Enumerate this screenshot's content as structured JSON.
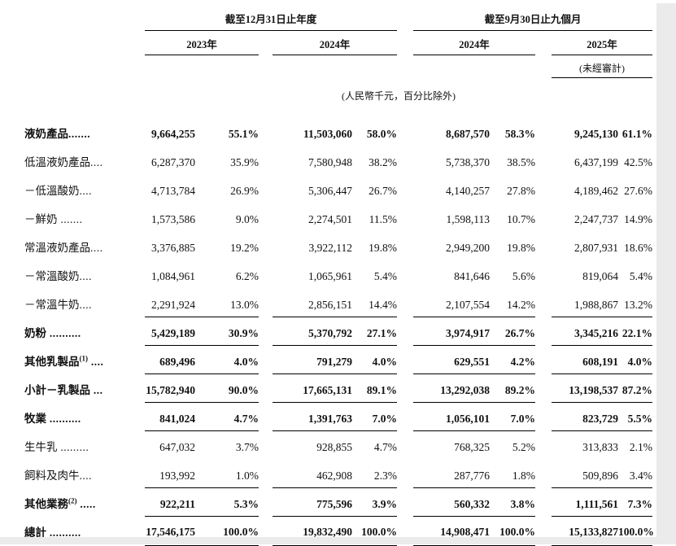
{
  "page": {
    "background": "#ffffff",
    "edge_color": "#ebebeb",
    "rule_color": "#000000"
  },
  "header": {
    "annual_period": "截至12月31日止年度",
    "interim_period": "截至9月30日止九個月",
    "years": {
      "annual_2023": "2023年",
      "annual_2024": "2024年",
      "interim_2024": "2024年",
      "interim_2025": "2025年"
    },
    "unaudited_note": "(未經審計)",
    "units_note": "(人民幣千元，百分比除外)"
  },
  "table": {
    "rows": [
      {
        "label": "液奶產品",
        "sup": "",
        "dots": ".......",
        "bold": true,
        "rule": "none",
        "values": [
          "9,664,255",
          "55.1%",
          "11,503,060",
          "58.0%",
          "8,687,570",
          "58.3%",
          "9,245,130",
          "61.1%"
        ]
      },
      {
        "label": "低溫液奶產品",
        "sup": "",
        "dots": "....",
        "bold": false,
        "rule": "none",
        "values": [
          "6,287,370",
          "35.9%",
          "7,580,948",
          "38.2%",
          "5,738,370",
          "38.5%",
          "6,437,199",
          "42.5%"
        ]
      },
      {
        "label": "－低溫酸奶",
        "sup": "",
        "dots": "....",
        "bold": false,
        "rule": "none",
        "values": [
          "4,713,784",
          "26.9%",
          "5,306,447",
          "26.7%",
          "4,140,257",
          "27.8%",
          "4,189,462",
          "27.6%"
        ]
      },
      {
        "label": "－鮮奶",
        "sup": "",
        "dots": " .......",
        "bold": false,
        "rule": "none",
        "values": [
          "1,573,586",
          "9.0%",
          "2,274,501",
          "11.5%",
          "1,598,113",
          "10.7%",
          "2,247,737",
          "14.9%"
        ]
      },
      {
        "label": "常溫液奶產品",
        "sup": "",
        "dots": "....",
        "bold": false,
        "rule": "none",
        "values": [
          "3,376,885",
          "19.2%",
          "3,922,112",
          "19.8%",
          "2,949,200",
          "19.8%",
          "2,807,931",
          "18.6%"
        ]
      },
      {
        "label": "－常溫酸奶",
        "sup": "",
        "dots": "....",
        "bold": false,
        "rule": "none",
        "values": [
          "1,084,961",
          "6.2%",
          "1,065,961",
          "5.4%",
          "841,646",
          "5.6%",
          "819,064",
          "5.4%"
        ]
      },
      {
        "label": "－常溫牛奶",
        "sup": "",
        "dots": "....",
        "bold": false,
        "rule": "single",
        "values": [
          "2,291,924",
          "13.0%",
          "2,856,151",
          "14.4%",
          "2,107,554",
          "14.2%",
          "1,988,867",
          "13.2%"
        ]
      },
      {
        "label": "奶粉",
        "sup": "",
        "dots": " ..........",
        "bold": true,
        "rule": "single",
        "values": [
          "5,429,189",
          "30.9%",
          "5,370,792",
          "27.1%",
          "3,974,917",
          "26.7%",
          "3,345,216",
          "22.1%"
        ]
      },
      {
        "label": "其他乳製品",
        "sup": "(1)",
        "dots": " ....",
        "bold": true,
        "rule": "single",
        "values": [
          "689,496",
          "4.0%",
          "791,279",
          "4.0%",
          "629,551",
          "4.2%",
          "608,191",
          "4.0%"
        ]
      },
      {
        "label": "小計－乳製品",
        "sup": "",
        "dots": " ...",
        "bold": true,
        "rule": "single",
        "values": [
          "15,782,940",
          "90.0%",
          "17,665,131",
          "89.1%",
          "13,292,038",
          "89.2%",
          "13,198,537",
          "87.2%"
        ]
      },
      {
        "label": "牧業",
        "sup": "",
        "dots": " ..........",
        "bold": true,
        "rule": "single",
        "values": [
          "841,024",
          "4.7%",
          "1,391,763",
          "7.0%",
          "1,056,101",
          "7.0%",
          "823,729",
          "5.5%"
        ]
      },
      {
        "label": "生牛乳",
        "sup": "",
        "dots": " .........",
        "bold": false,
        "rule": "none",
        "values": [
          "647,032",
          "3.7%",
          "928,855",
          "4.7%",
          "768,325",
          "5.2%",
          "313,833",
          "2.1%"
        ]
      },
      {
        "label": "飼料及肉牛",
        "sup": "",
        "dots": "....",
        "bold": false,
        "rule": "single",
        "values": [
          "193,992",
          "1.0%",
          "462,908",
          "2.3%",
          "287,776",
          "1.8%",
          "509,896",
          "3.4%"
        ]
      },
      {
        "label": "其他業務",
        "sup": "(2)",
        "dots": " .....",
        "bold": true,
        "rule": "single",
        "values": [
          "922,211",
          "5.3%",
          "775,596",
          "3.9%",
          "560,332",
          "3.8%",
          "1,111,561",
          "7.3%"
        ]
      },
      {
        "label": "總計",
        "sup": "",
        "dots": " ..........",
        "bold": true,
        "rule": "double",
        "values": [
          "17,546,175",
          "100.0%",
          "19,832,490",
          "100.0%",
          "14,908,471",
          "100.0%",
          "15,133,827",
          "100.0%"
        ]
      }
    ]
  }
}
